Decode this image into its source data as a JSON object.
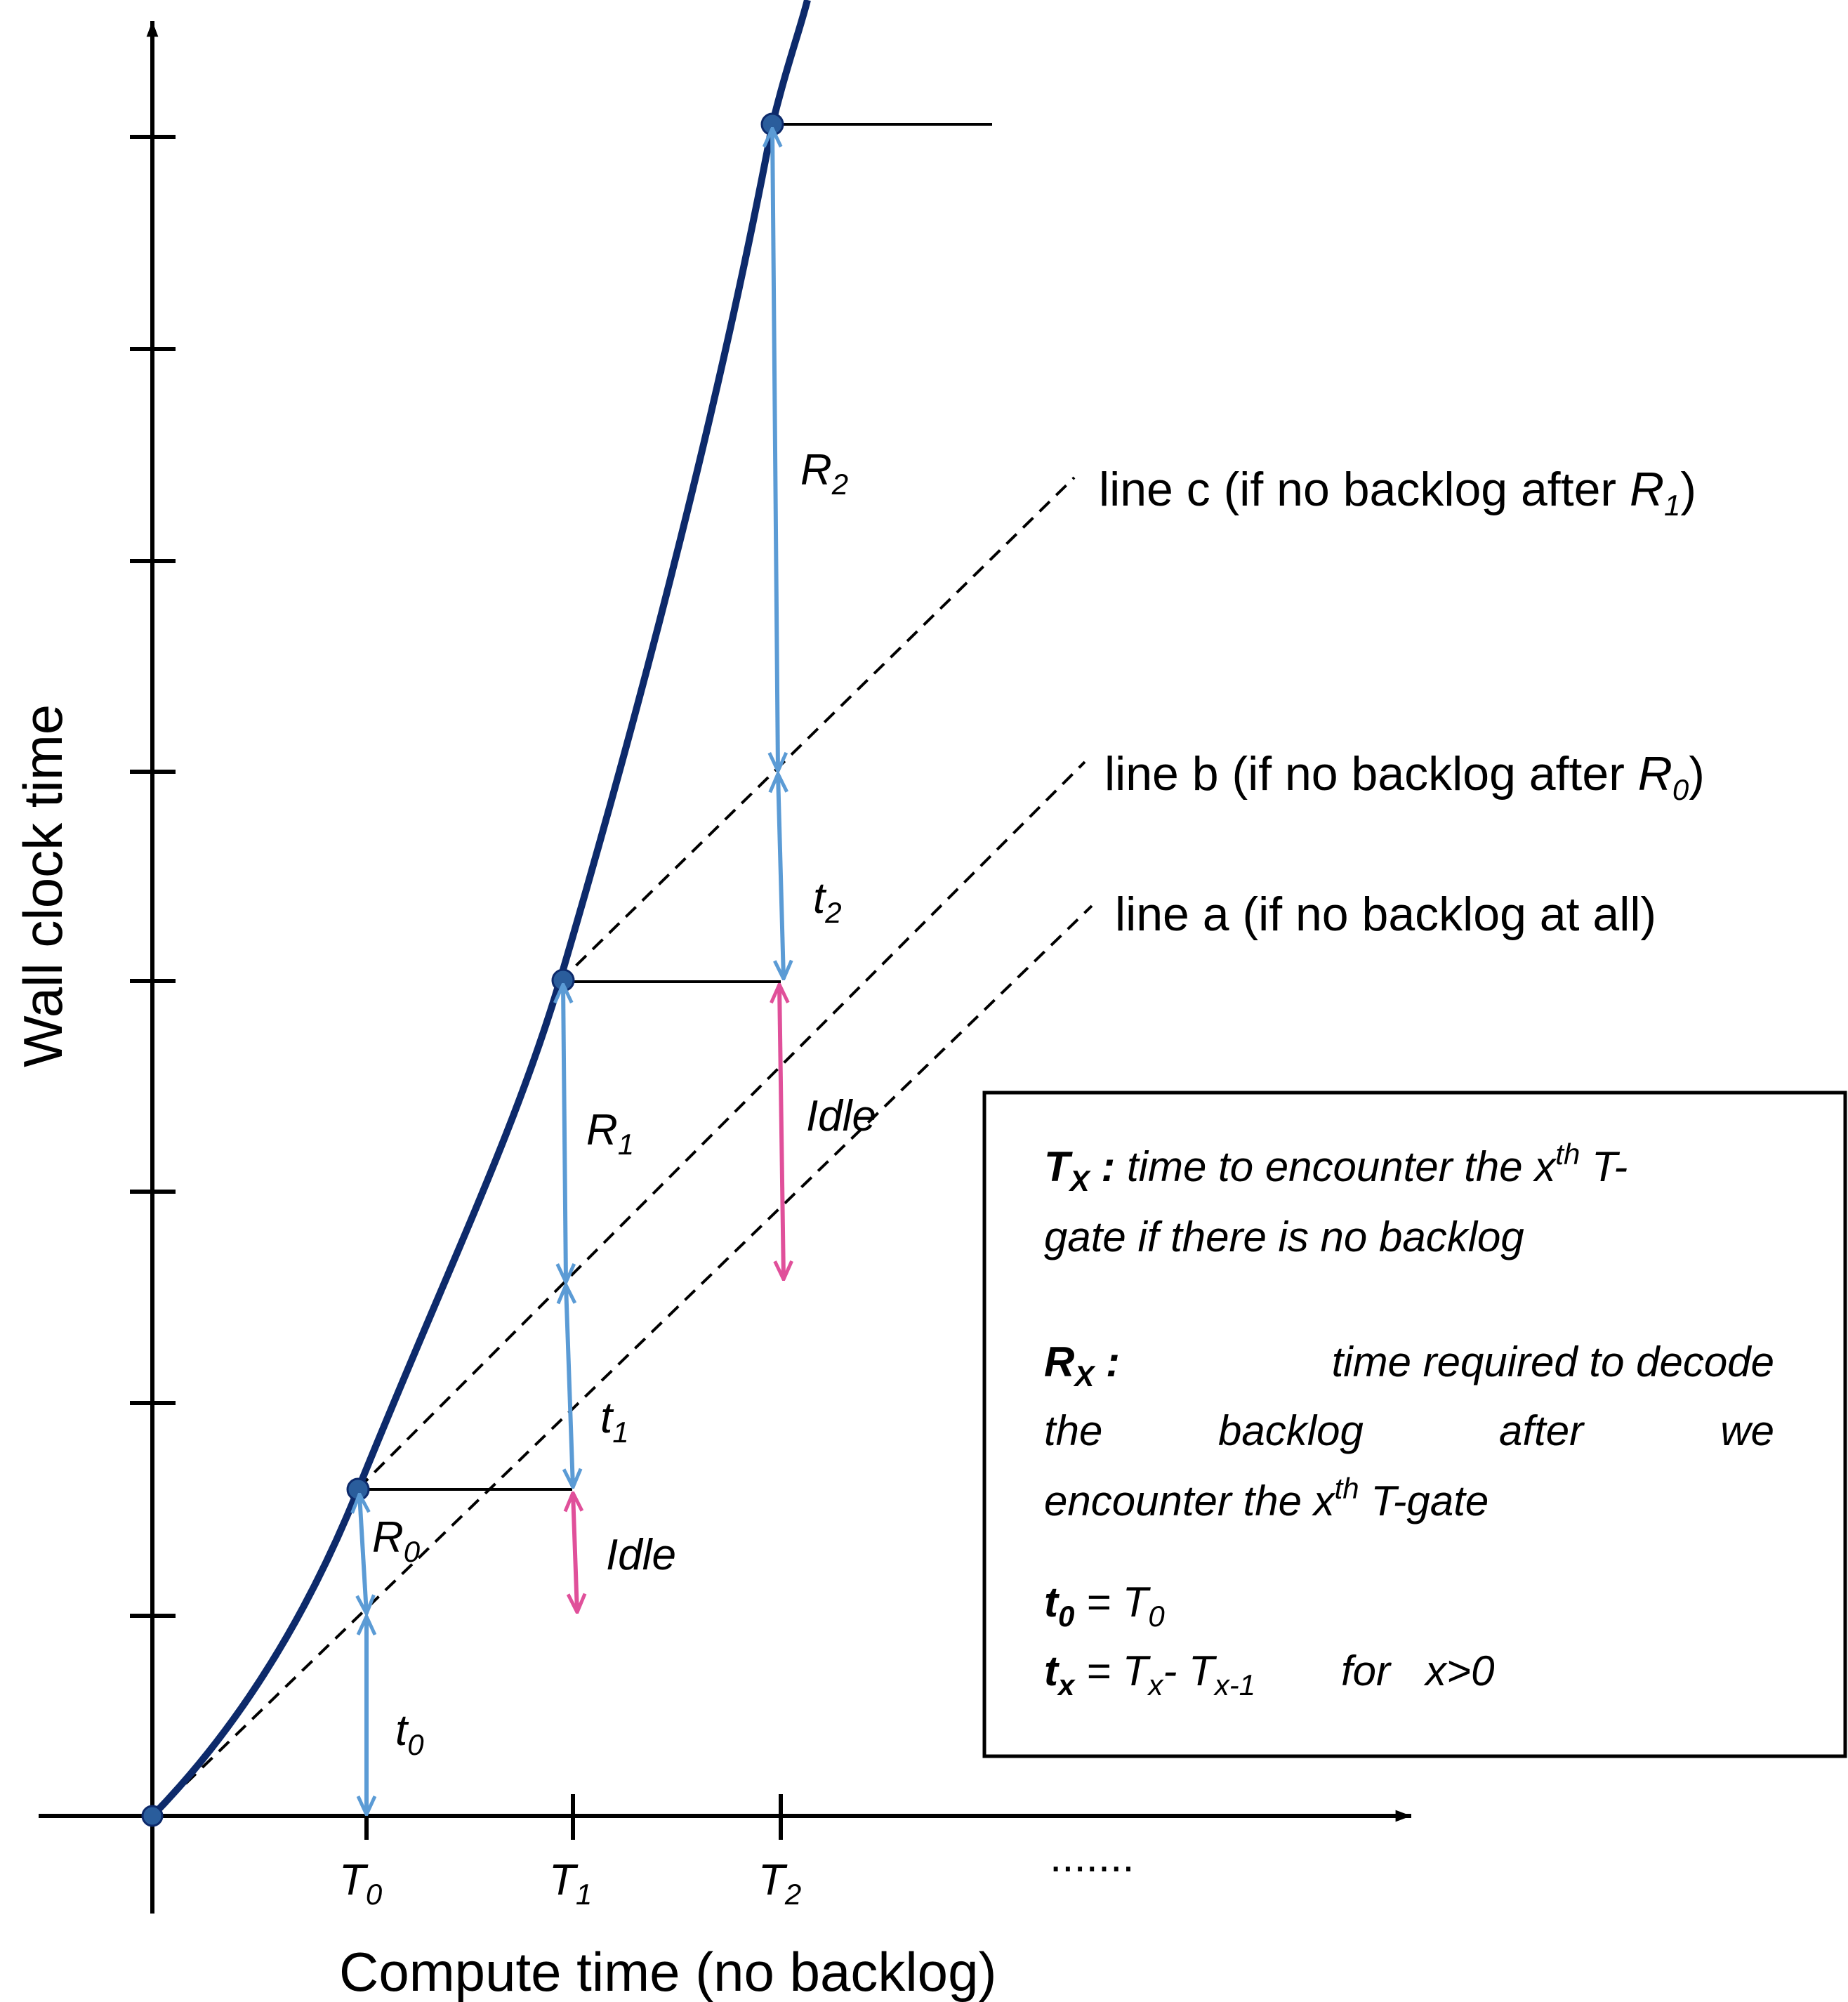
{
  "axes": {
    "x_title": "Compute time (no backlog)",
    "y_title": "Wall clock time",
    "ellipsis": "......."
  },
  "x_ticks": [
    {
      "base": "T",
      "sub": "0"
    },
    {
      "base": "T",
      "sub": "1"
    },
    {
      "base": "T",
      "sub": "2"
    }
  ],
  "segment_labels": {
    "t0": {
      "base": "t",
      "sub": "0"
    },
    "t1": {
      "base": "t",
      "sub": "1"
    },
    "t2": {
      "base": "t",
      "sub": "2"
    },
    "r0": {
      "base": "R",
      "sub": "0"
    },
    "r1": {
      "base": "R",
      "sub": "1"
    },
    "r2": {
      "base": "R",
      "sub": "2"
    },
    "idle1": "Idle",
    "idle2": "Idle"
  },
  "line_labels": {
    "c": {
      "text": "line c (if no backlog after ",
      "sym": "R",
      "sub": "1",
      "close": ")"
    },
    "b": {
      "text": "line b (if no backlog after ",
      "sym": "R",
      "sub": "0",
      "close": ")"
    },
    "a": {
      "text": "line a (if no backlog at all)"
    }
  },
  "legend": {
    "tx_sym": "T",
    "tx_sub": "X",
    "tx_sep": " :",
    "tx_line1_a": " time to encounter the x",
    "tx_line1_sup": "th",
    "tx_line1_b": " T-",
    "tx_line2": "gate if there is no backlog",
    "rx_sym": "R",
    "rx_sub": "X",
    "rx_sep": " :",
    "rx_line1": "time required to decode",
    "rx_line2_words": [
      "the",
      "backlog",
      "after",
      "we"
    ],
    "rx_line3_a": "encounter the x",
    "rx_line3_sup": "th",
    "rx_line3_b": " T-gate",
    "t0_sym": "t",
    "t0_sub": "0",
    "t0_eq": " = T",
    "t0_eq_sub": "0",
    "tx_def_sym": "t",
    "tx_def_sub": "x",
    "tx_def_eq": " = T",
    "tx_def_sub1": "x",
    "tx_def_minus": "- T",
    "tx_def_sub2": "x-1",
    "tx_def_cond": "for   x>0"
  },
  "colors": {
    "curve": "#0d2a6b",
    "blue_arrow": "#5b9bd5",
    "pink_arrow": "#e0509a",
    "axis": "#000000",
    "dot": "#2a5d9c"
  }
}
